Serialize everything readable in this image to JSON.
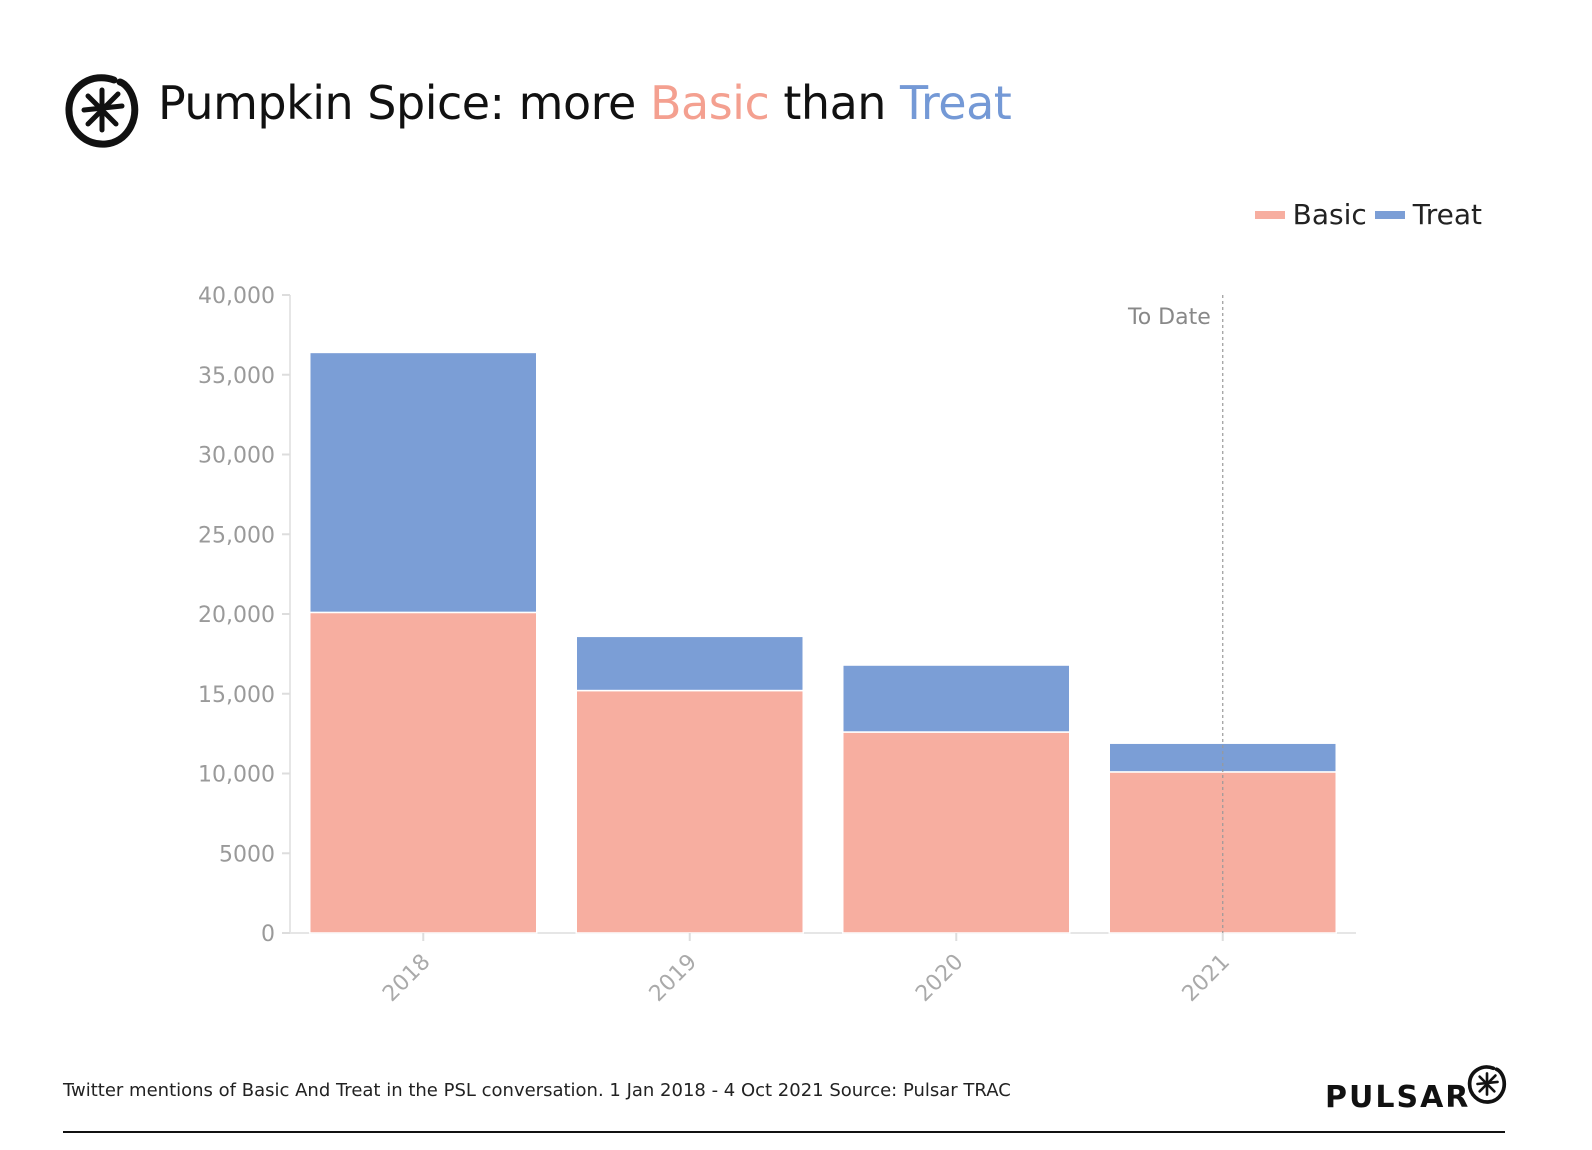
{
  "title": {
    "prefix": "Pumpkin Spice: more ",
    "basic": "Basic",
    "middle": " than ",
    "treat": "Treat"
  },
  "colors": {
    "basic": "#f7aea0",
    "treat": "#7b9ed6",
    "title_basic": "#f4a090",
    "title_treat": "#7499d6"
  },
  "icons": {
    "logo": "pulsar-asterisk-logo"
  },
  "footer": "Twitter mentions of Basic And Treat in the PSL conversation. 1 Jan 2018 - 4 Oct 2021 Source: Pulsar TRAC",
  "brand": "PULSAR",
  "chart_data": {
    "type": "bar",
    "stacked": true,
    "categories": [
      "2018",
      "2019",
      "2020",
      "2021"
    ],
    "series": [
      {
        "name": "Basic",
        "values": [
          20100,
          15200,
          12600,
          10100
        ]
      },
      {
        "name": "Treat",
        "values": [
          16300,
          3400,
          4200,
          1800
        ]
      }
    ],
    "ylim": [
      0,
      40000
    ],
    "yticks": [
      0,
      5000,
      10000,
      15000,
      20000,
      25000,
      30000,
      35000,
      40000
    ],
    "ytick_labels": [
      "0",
      "5000",
      "10,000",
      "15,000",
      "20,000",
      "25,000",
      "30,000",
      "35,000",
      "40,000"
    ],
    "legend": "top-right",
    "grid": false,
    "annotation": {
      "label": "To Date",
      "category": "2021"
    }
  }
}
